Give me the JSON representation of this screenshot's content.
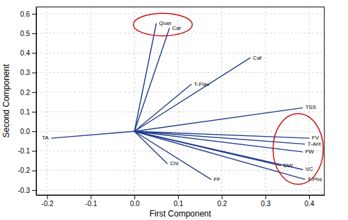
{
  "chart_data": {
    "type": "biplot",
    "labels": [
      "Quer",
      "Cat",
      "Caf",
      "T-Flav",
      "TSS",
      "FV",
      "T-Ant",
      "FW",
      "DW",
      "VC",
      "T-Phs",
      "Chl",
      "FF",
      "TA"
    ],
    "x": [
      0.05,
      0.08,
      0.265,
      0.13,
      0.385,
      0.4,
      0.39,
      0.385,
      0.335,
      0.385,
      0.39,
      0.075,
      0.175,
      -0.19
    ],
    "values": [
      0.55,
      0.525,
      0.375,
      0.24,
      0.12,
      -0.035,
      -0.065,
      -0.105,
      -0.175,
      -0.195,
      -0.245,
      -0.165,
      -0.245,
      -0.035
    ],
    "color": "#1f3d8a",
    "ellipses": [
      {
        "cx": 0.065,
        "cy": 0.545,
        "width": 0.135,
        "height": 0.115,
        "angle": 0,
        "color": "#cc1111"
      },
      {
        "cx": 0.375,
        "cy": -0.09,
        "width": 0.115,
        "height": 0.36,
        "angle": 0,
        "color": "#cc1111"
      }
    ],
    "xlim": [
      -0.225,
      0.435
    ],
    "ylim": [
      -0.325,
      0.635
    ],
    "xticks": [
      -0.2,
      -0.1,
      {
        "value": 0.0,
        "label": "0.0"
      },
      0.1,
      0.2,
      0.3,
      0.4
    ],
    "yticks": [
      -0.3,
      -0.2,
      -0.1,
      {
        "value": 0.0,
        "label": "0.0"
      },
      0.1,
      0.2,
      0.3,
      0.4,
      0.5,
      0.6
    ],
    "xlabel": "First Component",
    "ylabel": "Second Component",
    "grid": true
  }
}
